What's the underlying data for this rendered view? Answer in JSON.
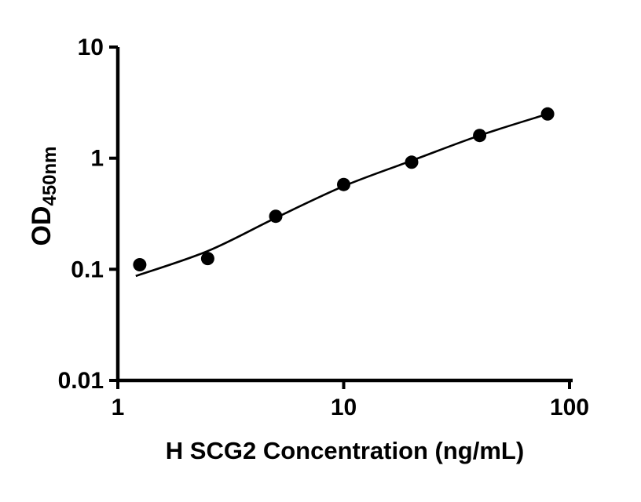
{
  "figure": {
    "background": "#ffffff",
    "foreground": "#000000"
  },
  "chart_data": {
    "type": "scatter",
    "title": "",
    "xlabel": "H SCG2 Concentration (ng/mL)",
    "ylabel": "OD450nm",
    "ylabel_main": "OD",
    "ylabel_sub": "450nm",
    "x_scale": "log",
    "y_scale": "log",
    "xlim": [
      1,
      100
    ],
    "ylim": [
      0.01,
      10
    ],
    "x_ticks": [
      1,
      10,
      100
    ],
    "y_ticks": [
      10,
      1,
      0.1,
      0.01
    ],
    "grid": false,
    "legend": false,
    "series": [
      {
        "name": "H SCG2 standard curve points",
        "marker": "filled-circle",
        "color": "#000000",
        "x": [
          1.25,
          2.5,
          5,
          10,
          20,
          40,
          80
        ],
        "y": [
          0.11,
          0.125,
          0.3,
          0.58,
          0.92,
          1.6,
          2.5
        ]
      }
    ],
    "fit_line": {
      "name": "fitted curve",
      "color": "#000000",
      "x": [
        1.2,
        2.5,
        5,
        10,
        20,
        40,
        80
      ],
      "y": [
        0.087,
        0.146,
        0.29,
        0.56,
        0.95,
        1.6,
        2.5
      ]
    }
  }
}
